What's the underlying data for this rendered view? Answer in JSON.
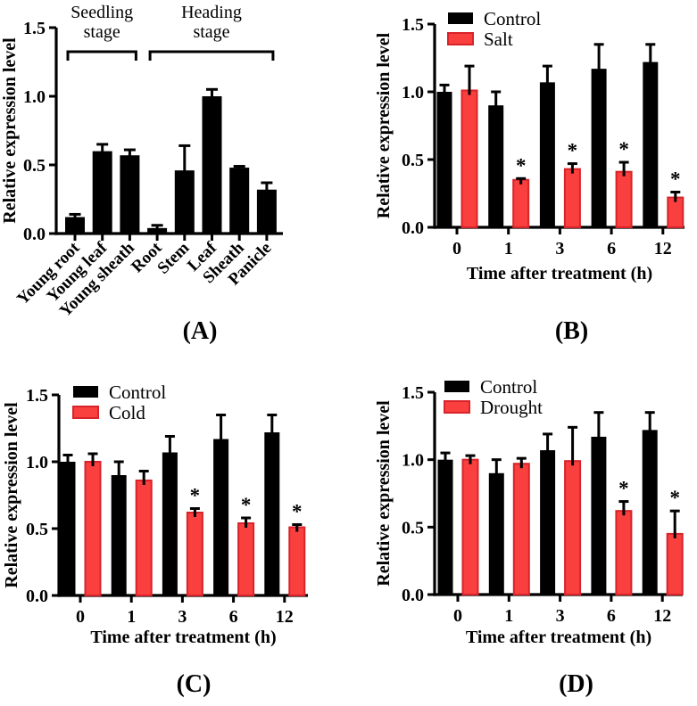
{
  "figure": {
    "background": "#ffffff",
    "significance_marker": "*",
    "axis_color": "#000000"
  },
  "chart_data": [
    {
      "panel": "(A)",
      "type": "bar",
      "title": "",
      "ylabel": "Relative expression level",
      "xlabel": "",
      "ylim": [
        0,
        1.5
      ],
      "yticks": [
        0,
        0.5,
        1.0,
        1.5
      ],
      "ytick_labels": [
        "0.0",
        "0.5",
        "1.0",
        "1.5"
      ],
      "categories": [
        "Young root",
        "Young leaf",
        "Young sheath",
        "Root",
        "Stem",
        "Leaf",
        "Sheath",
        "Panicle"
      ],
      "values": [
        0.12,
        0.6,
        0.57,
        0.04,
        0.46,
        1.0,
        0.48,
        0.32
      ],
      "errors": [
        0.02,
        0.05,
        0.04,
        0.02,
        0.18,
        0.05,
        0.01,
        0.05
      ],
      "bar_color": "#000000",
      "grid": false,
      "group_annotations": [
        {
          "label": "Seedling stage",
          "from": 0,
          "to": 2
        },
        {
          "label": "Heading stage",
          "from": 3,
          "to": 7
        }
      ]
    },
    {
      "panel": "(B)",
      "type": "grouped-bar",
      "title": "",
      "ylabel": "Relative expression level",
      "xlabel": "Time after treatment (h)",
      "ylim": [
        0,
        1.5
      ],
      "yticks": [
        0,
        0.5,
        1.0,
        1.5
      ],
      "ytick_labels": [
        "0.0",
        "0.5",
        "1.0",
        "1.5"
      ],
      "categories": [
        "0",
        "1",
        "3",
        "6",
        "12"
      ],
      "legend_position": "top-left",
      "grid": false,
      "series": [
        {
          "name": "Control",
          "color": "#000000",
          "border": "#000000",
          "values": [
            1.0,
            0.9,
            1.07,
            1.17,
            1.22
          ],
          "errors": [
            0.05,
            0.1,
            0.12,
            0.18,
            0.13
          ],
          "significant": [
            false,
            false,
            false,
            false,
            false
          ]
        },
        {
          "name": "Salt",
          "color": "#f9403e",
          "border": "#d8232a",
          "values": [
            1.01,
            0.35,
            0.43,
            0.41,
            0.22
          ],
          "errors": [
            0.18,
            0.01,
            0.04,
            0.07,
            0.04
          ],
          "significant": [
            false,
            true,
            true,
            true,
            true
          ]
        }
      ]
    },
    {
      "panel": "(C)",
      "type": "grouped-bar",
      "title": "",
      "ylabel": "Relative expression level",
      "xlabel": "Time after treatment (h)",
      "ylim": [
        0,
        1.5
      ],
      "yticks": [
        0,
        0.5,
        1.0,
        1.5
      ],
      "ytick_labels": [
        "0.0",
        "0.5",
        "1.0",
        "1.5"
      ],
      "categories": [
        "0",
        "1",
        "3",
        "6",
        "12"
      ],
      "legend_position": "top-left",
      "grid": false,
      "series": [
        {
          "name": "Control",
          "color": "#000000",
          "border": "#000000",
          "values": [
            1.0,
            0.9,
            1.07,
            1.17,
            1.22
          ],
          "errors": [
            0.05,
            0.1,
            0.12,
            0.18,
            0.13
          ],
          "significant": [
            false,
            false,
            false,
            false,
            false
          ]
        },
        {
          "name": "Cold",
          "color": "#f9403e",
          "border": "#d8232a",
          "values": [
            1.0,
            0.86,
            0.62,
            0.54,
            0.51
          ],
          "errors": [
            0.06,
            0.07,
            0.03,
            0.04,
            0.02
          ],
          "significant": [
            false,
            false,
            true,
            true,
            true
          ]
        }
      ]
    },
    {
      "panel": "(D)",
      "type": "grouped-bar",
      "title": "",
      "ylabel": "Relative expression level",
      "xlabel": "Time after treatment (h)",
      "ylim": [
        0,
        1.5
      ],
      "yticks": [
        0,
        0.5,
        1.0,
        1.5
      ],
      "ytick_labels": [
        "0.0",
        "0.5",
        "1.0",
        "1.5"
      ],
      "categories": [
        "0",
        "1",
        "3",
        "6",
        "12"
      ],
      "legend_position": "top-left",
      "grid": false,
      "series": [
        {
          "name": "Control",
          "color": "#000000",
          "border": "#000000",
          "values": [
            1.0,
            0.9,
            1.07,
            1.17,
            1.22
          ],
          "errors": [
            0.05,
            0.1,
            0.12,
            0.18,
            0.13
          ],
          "significant": [
            false,
            false,
            false,
            false,
            false
          ]
        },
        {
          "name": "Drought",
          "color": "#f9403e",
          "border": "#d8232a",
          "values": [
            1.0,
            0.97,
            0.99,
            0.62,
            0.45
          ],
          "errors": [
            0.03,
            0.04,
            0.25,
            0.07,
            0.17
          ],
          "significant": [
            false,
            false,
            false,
            true,
            true
          ]
        }
      ]
    }
  ]
}
